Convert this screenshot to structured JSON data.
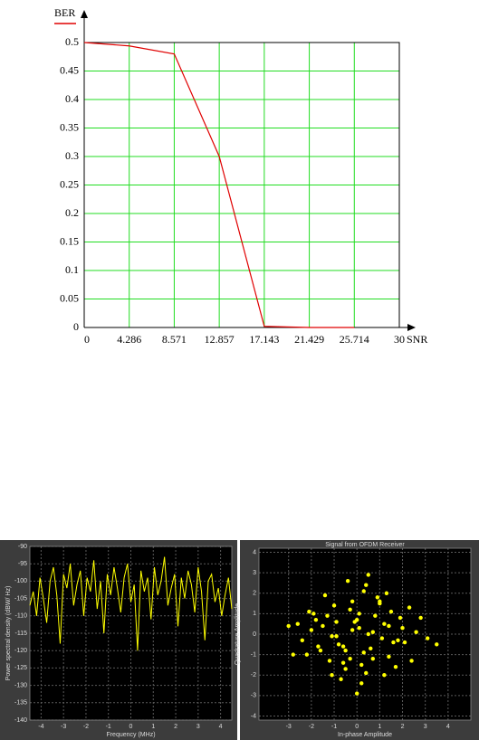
{
  "chart_data": [
    {
      "type": "line",
      "x_label": "SNR",
      "x": [
        0,
        4.286,
        8.571,
        12.857,
        17.143,
        21.429,
        25.714
      ],
      "series": [
        {
          "name": "BER",
          "color": "#e00000",
          "values": [
            0.5,
            0.494,
            0.48,
            0.3,
            0.002,
            0,
            0
          ]
        }
      ],
      "xlim": [
        0,
        30
      ],
      "xticks": [
        0,
        4.286,
        8.571,
        12.857,
        17.143,
        21.429,
        25.714,
        30
      ],
      "ylim": [
        0,
        0.5
      ],
      "yticks": [
        0,
        0.05,
        0.1,
        0.15,
        0.2,
        0.25,
        0.3,
        0.35,
        0.4,
        0.45,
        0.5
      ],
      "grid": true,
      "grid_color": "#22dd22",
      "background": "#ffffff"
    },
    {
      "type": "line",
      "x_label": "Frequency (MHz)",
      "y_label": "Power spectral density (dBW/ Hz)",
      "x": [
        -4.5,
        -4.35,
        -4.2,
        -4.05,
        -3.9,
        -3.75,
        -3.6,
        -3.45,
        -3.3,
        -3.15,
        -3,
        -2.85,
        -2.7,
        -2.55,
        -2.4,
        -2.25,
        -2.1,
        -1.95,
        -1.8,
        -1.65,
        -1.5,
        -1.35,
        -1.2,
        -1.05,
        -0.9,
        -0.75,
        -0.6,
        -0.45,
        -0.3,
        -0.15,
        0,
        0.15,
        0.3,
        0.45,
        0.6,
        0.75,
        0.9,
        1.05,
        1.2,
        1.35,
        1.5,
        1.65,
        1.8,
        1.95,
        2.1,
        2.25,
        2.4,
        2.55,
        2.7,
        2.85,
        3,
        3.15,
        3.3,
        3.45,
        3.6,
        3.75,
        3.9,
        4.05,
        4.2,
        4.35,
        4.5
      ],
      "series": [
        {
          "color": "#ffff00",
          "values": [
            -107,
            -103,
            -110,
            -99,
            -105,
            -112,
            -100,
            -96,
            -104,
            -118,
            -98,
            -102,
            -95,
            -107,
            -101,
            -97,
            -110,
            -99,
            -103,
            -94,
            -108,
            -100,
            -115,
            -98,
            -104,
            -96,
            -102,
            -109,
            -99,
            -95,
            -106,
            -101,
            -120,
            -97,
            -103,
            -99,
            -111,
            -96,
            -104,
            -100,
            -93,
            -107,
            -102,
            -98,
            -113,
            -99,
            -105,
            -97,
            -101,
            -109,
            -96,
            -103,
            -117,
            -100,
            -98,
            -106,
            -102,
            -110,
            -104,
            -99,
            -108
          ]
        }
      ],
      "xlim": [
        -4.5,
        4.5
      ],
      "xticks": [
        -4,
        -3,
        -2,
        -1,
        0,
        1,
        2,
        3,
        4
      ],
      "ylim": [
        -140,
        -90
      ],
      "yticks": [
        -140,
        -135,
        -130,
        -125,
        -120,
        -115,
        -110,
        -105,
        -100,
        -95,
        -90
      ],
      "grid": true,
      "grid_color": "#5a5a5a",
      "background": "#000000"
    },
    {
      "type": "scatter",
      "title": "Signal from OFDM Receiver",
      "x_label": "In-phase Amplitude",
      "y_label": "Quadrature Amplitude",
      "x": [
        0.1,
        -0.5,
        1.2,
        -1.3,
        0.7,
        -0.2,
        2.1,
        -2.0,
        0.4,
        1.5,
        -0.9,
        0.0,
        -1.7,
        1.9,
        0.3,
        -0.6,
        2.6,
        -2.4,
        1.0,
        -1.1,
        0.5,
        -0.3,
        1.4,
        -1.5,
        0.8,
        -0.8,
        2.3,
        -2.2,
        0.2,
        1.1,
        -0.4,
        0.6,
        -1.9,
        1.7,
        -0.1,
        0.9,
        -1.2,
        2.0,
        -2.6,
        0.3,
        1.3,
        -0.7,
        3.1,
        -3.0,
        0.0,
        -1.0,
        1.6,
        -1.6,
        0.4,
        -0.2,
        2.8,
        -0.5,
        1.2,
        -1.4,
        0.7,
        3.5,
        -2.8,
        0.1,
        -0.9,
        1.8,
        -0.3,
        0.5,
        -1.8,
        2.4,
        -0.6,
        1.0,
        -2.1,
        0.2,
        1.4,
        -1.1
      ],
      "values": [
        0.3,
        -0.8,
        0.5,
        0.9,
        -1.2,
        1.6,
        -0.4,
        0.2,
        -1.9,
        1.1,
        -0.1,
        0.7,
        -0.6,
        0.8,
        2.1,
        -1.4,
        0.1,
        -0.3,
        1.5,
        -2.0,
        0.0,
        1.2,
        -1.1,
        0.4,
        0.9,
        -0.5,
        1.3,
        -1.0,
        -2.4,
        -0.2,
        2.6,
        -0.7,
        1.0,
        -1.6,
        0.6,
        1.8,
        -1.3,
        0.3,
        0.5,
        -0.9,
        2.0,
        -2.2,
        -0.2,
        0.4,
        -2.9,
        1.4,
        -0.4,
        -0.8,
        2.4,
        0.2,
        0.8,
        -1.7,
        -2.0,
        1.9,
        0.1,
        -0.5,
        -1.0,
        1.0,
        0.6,
        -0.3,
        -1.2,
        2.9,
        0.7,
        -1.3,
        -0.6,
        1.6,
        1.1,
        -1.5,
        0.4,
        -0.1
      ],
      "color": "#ffff00",
      "xlim": [
        -4.3,
        5
      ],
      "xticks": [
        -3,
        -2,
        -1,
        0,
        1,
        2,
        3,
        4
      ],
      "ylim": [
        -4.2,
        4.2
      ],
      "yticks": [
        -4,
        -3,
        -2,
        -1,
        0,
        1,
        2,
        3,
        4
      ],
      "grid": true,
      "grid_color": "#5a5a5a",
      "background": "#000000"
    }
  ]
}
